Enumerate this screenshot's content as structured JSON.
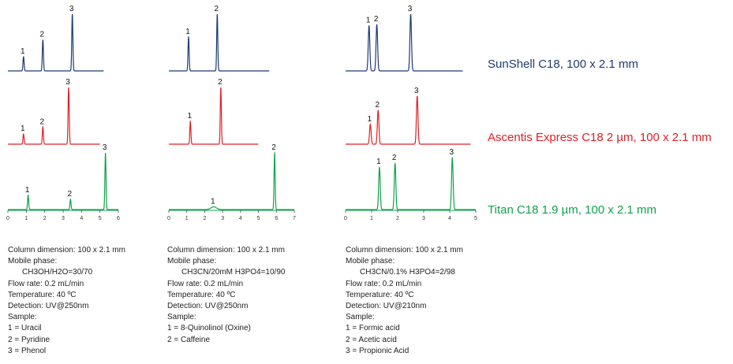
{
  "columns": [
    {
      "name": "SunShell C18, 100 x 2.1 mm",
      "color": "#1f3a73"
    },
    {
      "name": "Ascentis Express C18 2 µm, 100 x 2.1 mm",
      "color": "#e31e24"
    },
    {
      "name": "Titan C18 1.9 µm, 100 x 2.1 mm",
      "color": "#10a34a"
    }
  ],
  "conditions": [
    {
      "column": "Column dimension: 100 x 2.1 mm",
      "mobile_label": "Mobile phase:",
      "mobile_value": "CH3OH/H2O=30/70",
      "flow": "Flow rate: 0.2 mL/min",
      "temp": "Temperature: 40 ºC",
      "detection": "Detection: UV@250nm",
      "sample_label": "Sample:",
      "samples": [
        "1 = Uracil",
        "2 = Pyridine",
        "3 = Phenol"
      ]
    },
    {
      "column": "Column dimension: 100 x 2.1 mm",
      "mobile_label": "Mobile phase:",
      "mobile_value": "CH3CN/20mM H3PO4=10/90",
      "flow": "Flow rate: 0.2 mL/min",
      "temp": "Temperature: 40 ºC",
      "detection": "Detection: UV@250nm",
      "sample_label": "Sample:",
      "samples": [
        "1 = 8-Quinolinol (Oxine)",
        "2 = Caffeine"
      ]
    },
    {
      "column": "Column dimension: 100 x 2.1 mm",
      "mobile_label": "Mobile phase:",
      "mobile_value": "CH3CN/0.1% H3PO4=2/98",
      "flow": "Flow rate: 0.2 mL/min",
      "temp": "Temperature: 40 ºC",
      "detection": "Detection: UV@210nm",
      "sample_label": "Sample:",
      "samples": [
        "1 = Formic acid",
        "2 = Acetic acid",
        "3 = Propionic Acid"
      ]
    }
  ],
  "chart_data": [
    {
      "type": "line",
      "xlim": [
        0,
        6
      ],
      "xticks": [
        "0",
        "1",
        "2",
        "3",
        "4",
        "5",
        "6"
      ],
      "xticks_on_row": 2,
      "series": [
        {
          "name": "SunShell C18, 100 x 2.1 mm",
          "peaks": [
            {
              "label": "1",
              "x": 0.85,
              "h": 0.25
            },
            {
              "label": "2",
              "x": 1.9,
              "h": 0.55
            },
            {
              "label": "3",
              "x": 3.5,
              "h": 1.0
            }
          ],
          "baseline_end": 5.2
        },
        {
          "name": "Ascentis Express C18 2 µm, 100 x 2.1 mm",
          "peaks": [
            {
              "label": "1",
              "x": 0.85,
              "h": 0.18
            },
            {
              "label": "2",
              "x": 1.9,
              "h": 0.3
            },
            {
              "label": "3",
              "x": 3.3,
              "h": 1.0
            }
          ],
          "baseline_end": 5.0
        },
        {
          "name": "Titan C18 1.9 µm, 100 x 2.1 mm",
          "peaks": [
            {
              "label": "1",
              "x": 1.1,
              "h": 0.25
            },
            {
              "label": "2",
              "x": 3.4,
              "h": 0.18
            },
            {
              "label": "3",
              "x": 5.3,
              "h": 1.0
            }
          ],
          "baseline_end": 6.0
        }
      ]
    },
    {
      "type": "line",
      "xlim": [
        0,
        7
      ],
      "xticks": [
        "0",
        "1",
        "2",
        "3",
        "4",
        "5",
        "6",
        "7"
      ],
      "xticks_on_row": 2,
      "series": [
        {
          "name": "SunShell C18, 100 x 2.1 mm",
          "peaks": [
            {
              "label": "1",
              "x": 1.1,
              "h": 0.6
            },
            {
              "label": "2",
              "x": 2.7,
              "h": 1.0
            }
          ],
          "baseline_end": 5.6
        },
        {
          "name": "Ascentis Express C18 2 µm, 100 x 2.1 mm",
          "peaks": [
            {
              "label": "1",
              "x": 1.2,
              "h": 0.4
            },
            {
              "label": "2",
              "x": 2.9,
              "h": 1.0
            }
          ],
          "baseline_end": 5.0
        },
        {
          "name": "Titan C18 1.9 µm, 100 x 2.1 mm",
          "peaks": [
            {
              "label": "1",
              "x": 2.5,
              "h": 0.05
            },
            {
              "label": "2",
              "x": 5.9,
              "h": 1.0
            }
          ],
          "baseline_end": 7.0
        }
      ]
    },
    {
      "type": "line",
      "xlim": [
        0,
        5
      ],
      "xticks": [
        "0",
        "1",
        "2",
        "3",
        "4",
        "5"
      ],
      "xticks_on_row": 2,
      "series": [
        {
          "name": "SunShell C18, 100 x 2.1 mm",
          "peaks": [
            {
              "label": "1",
              "x": 0.9,
              "h": 0.8
            },
            {
              "label": "2",
              "x": 1.2,
              "h": 0.82
            },
            {
              "label": "3",
              "x": 2.5,
              "h": 1.0
            }
          ],
          "baseline_end": 4.5
        },
        {
          "name": "Ascentis Express C18 2 µm, 100 x 2.1 mm",
          "peaks": [
            {
              "label": "1",
              "x": 0.95,
              "h": 0.35
            },
            {
              "label": "2",
              "x": 1.25,
              "h": 0.6
            },
            {
              "label": "3",
              "x": 2.75,
              "h": 0.85
            }
          ],
          "baseline_end": 4.8
        },
        {
          "name": "Titan C18 1.9 µm, 100 x 2.1 mm",
          "peaks": [
            {
              "label": "1",
              "x": 1.3,
              "h": 0.75
            },
            {
              "label": "2",
              "x": 1.9,
              "h": 0.82
            },
            {
              "label": "3",
              "x": 4.1,
              "h": 0.92
            }
          ],
          "baseline_end": 5.0
        }
      ]
    }
  ]
}
